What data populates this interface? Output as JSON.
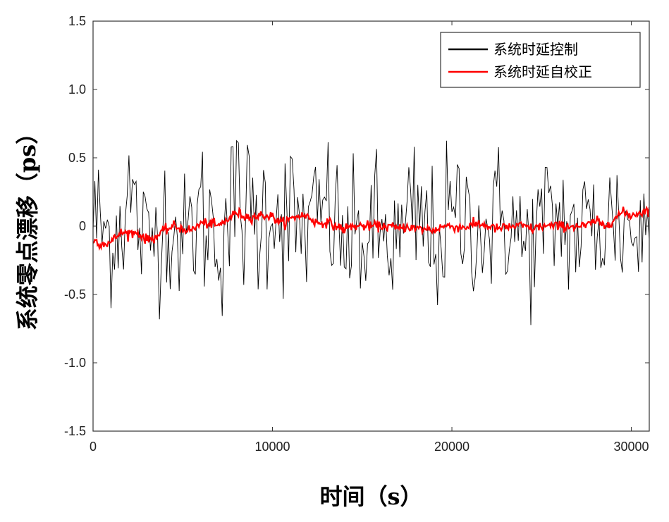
{
  "chart_data": {
    "type": "line",
    "xlabel": "时间（s）",
    "ylabel": "系统零点漂移（ps）",
    "xlim": [
      0,
      31000
    ],
    "ylim": [
      -1.5,
      1.5
    ],
    "x_ticks": [
      "0",
      "10000",
      "20000",
      "30000"
    ],
    "y_ticks": [
      "-1.5",
      "-1.0",
      "-0.5",
      "0",
      "0.5",
      "1.0",
      "1.5"
    ],
    "legend_position": "top-right",
    "grid": false,
    "x_step": 100,
    "series": [
      {
        "name": "系统时延控制",
        "color": "#000000",
        "amplitude_points": {
          "x": [
            0,
            1000,
            2000,
            3000,
            4000,
            5000,
            6000,
            7000,
            8000,
            9000,
            10000,
            11000,
            12000,
            13000,
            14000,
            15000,
            16000,
            17000,
            18000,
            19000,
            20000,
            21000,
            22000,
            23000,
            24000,
            25000,
            26000,
            27000,
            28000,
            29000,
            30000,
            31000
          ],
          "y": [
            0.55,
            0.45,
            0.62,
            0.45,
            0.5,
            0.42,
            0.55,
            0.6,
            0.55,
            0.6,
            0.5,
            0.58,
            0.45,
            0.55,
            0.45,
            0.5,
            0.55,
            0.48,
            0.6,
            0.5,
            0.55,
            0.5,
            0.45,
            0.55,
            0.48,
            0.5,
            0.52,
            0.48,
            0.55,
            0.5,
            0.55,
            0.5
          ]
        },
        "mean_points": {
          "x": [
            0,
            1000,
            2000,
            3000,
            4000,
            5000,
            6000,
            7000,
            8000,
            9000,
            10000,
            11000,
            12000,
            13000,
            14000,
            15000,
            16000,
            17000,
            18000,
            19000,
            20000,
            21000,
            22000,
            23000,
            24000,
            25000,
            26000,
            27000,
            28000,
            29000,
            30000,
            31000
          ],
          "y": [
            0.1,
            -0.15,
            0.35,
            -0.25,
            0.15,
            -0.2,
            0.15,
            -0.1,
            0.3,
            0.0,
            0.3,
            0.05,
            -0.05,
            0.25,
            -0.25,
            -0.15,
            -0.1,
            -0.25,
            0.1,
            -0.2,
            0.05,
            0.1,
            -0.1,
            0.2,
            -0.3,
            0.0,
            0.1,
            -0.1,
            0.0,
            0.1,
            -0.05,
            -0.1
          ]
        }
      },
      {
        "name": "系统时延自校正",
        "color": "#ff0000",
        "x": [
          0,
          500,
          1000,
          1500,
          2000,
          2500,
          3000,
          3500,
          4000,
          4500,
          5000,
          5500,
          6000,
          6500,
          7000,
          7500,
          8000,
          8500,
          9000,
          9500,
          10000,
          10500,
          11000,
          11500,
          12000,
          12500,
          13000,
          13500,
          14000,
          14500,
          15000,
          15500,
          16000,
          16500,
          17000,
          17500,
          18000,
          18500,
          19000,
          19500,
          20000,
          20500,
          21000,
          21500,
          22000,
          22500,
          23000,
          23500,
          24000,
          24500,
          25000,
          25500,
          26000,
          26500,
          27000,
          27500,
          28000,
          28500,
          29000,
          29500,
          30000,
          30500,
          31000
        ],
        "y": [
          -0.1,
          -0.13,
          -0.12,
          -0.05,
          -0.05,
          -0.05,
          -0.1,
          -0.08,
          -0.03,
          0.0,
          -0.02,
          -0.03,
          0.02,
          0.02,
          0.0,
          0.05,
          0.1,
          0.07,
          0.07,
          0.08,
          0.07,
          0.02,
          0.05,
          0.08,
          0.07,
          0.02,
          0.03,
          0.0,
          -0.02,
          0.0,
          0.0,
          0.0,
          0.0,
          0.0,
          -0.02,
          0.0,
          -0.02,
          -0.02,
          -0.03,
          0.0,
          0.0,
          -0.01,
          0.0,
          0.02,
          0.0,
          -0.02,
          -0.01,
          0.0,
          0.0,
          -0.02,
          0.0,
          0.0,
          0.0,
          0.0,
          0.0,
          0.0,
          0.04,
          0.0,
          0.05,
          0.1,
          0.08,
          0.1,
          0.12
        ]
      }
    ]
  }
}
